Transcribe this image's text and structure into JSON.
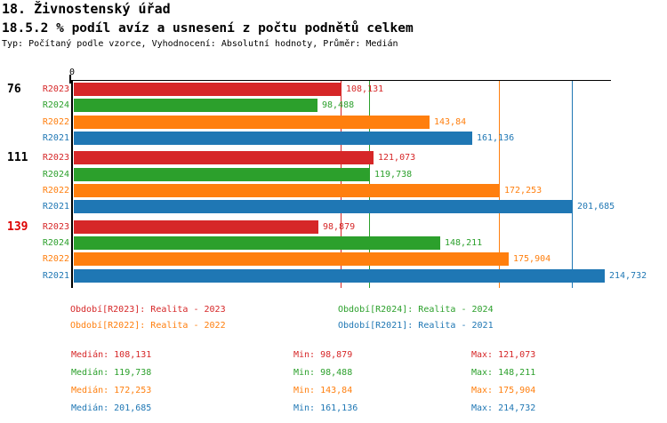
{
  "header": {
    "title": "18. Živnostenský úřad",
    "subtitle": "18.5.2 % podíl avíz a usnesení z počtu podnětů celkem",
    "meta": "Typ: Počítaný podle vzorce, Vyhodnocení: Absolutní hodnoty, Průměr: Medián"
  },
  "colors": {
    "r2023": "#d62728",
    "r2024": "#2ca02c",
    "r2022": "#ff7f0e",
    "r2021": "#1f77b4",
    "axis": "#000000",
    "group_label_normal": "#000000",
    "group_label_alert": "#dd0000"
  },
  "chart_data": {
    "type": "bar",
    "orientation": "horizontal",
    "x_axis": {
      "origin_label": "0",
      "xlim": [
        0,
        217.8
      ],
      "gridlines_are_medians": true
    },
    "series_order": [
      "R2023",
      "R2024",
      "R2022",
      "R2021"
    ],
    "groups": [
      {
        "label": "76",
        "label_color": "#000000",
        "bars": [
          {
            "series": "R2023",
            "value": 108.131,
            "label": "108,131",
            "color": "#d62728"
          },
          {
            "series": "R2024",
            "value": 98.488,
            "label": "98,488",
            "color": "#2ca02c"
          },
          {
            "series": "R2022",
            "value": 143.84,
            "label": "143,84",
            "color": "#ff7f0e"
          },
          {
            "series": "R2021",
            "value": 161.136,
            "label": "161,136",
            "color": "#1f77b4"
          }
        ]
      },
      {
        "label": "111",
        "label_color": "#000000",
        "bars": [
          {
            "series": "R2023",
            "value": 121.073,
            "label": "121,073",
            "color": "#d62728"
          },
          {
            "series": "R2024",
            "value": 119.738,
            "label": "119,738",
            "color": "#2ca02c"
          },
          {
            "series": "R2022",
            "value": 172.253,
            "label": "172,253",
            "color": "#ff7f0e"
          },
          {
            "series": "R2021",
            "value": 201.685,
            "label": "201,685",
            "color": "#1f77b4"
          }
        ]
      },
      {
        "label": "139",
        "label_color": "#dd0000",
        "bars": [
          {
            "series": "R2023",
            "value": 98.879,
            "label": "98,879",
            "color": "#d62728"
          },
          {
            "series": "R2024",
            "value": 148.211,
            "label": "148,211",
            "color": "#2ca02c"
          },
          {
            "series": "R2022",
            "value": 175.904,
            "label": "175,904",
            "color": "#ff7f0e"
          },
          {
            "series": "R2021",
            "value": 214.732,
            "label": "214,732",
            "color": "#1f77b4"
          }
        ]
      }
    ],
    "median_gridlines": [
      {
        "series": "R2023",
        "value": 108.131,
        "color": "#d62728"
      },
      {
        "series": "R2024",
        "value": 119.738,
        "color": "#2ca02c"
      },
      {
        "series": "R2022",
        "value": 172.253,
        "color": "#ff7f0e"
      },
      {
        "series": "R2021",
        "value": 201.685,
        "color": "#1f77b4"
      }
    ],
    "legend": [
      {
        "series": "R2023",
        "label": "Období[R2023]: Realita - 2023",
        "color": "#d62728",
        "col": 0,
        "row": 0
      },
      {
        "series": "R2024",
        "label": "Období[R2024]: Realita - 2024",
        "color": "#2ca02c",
        "col": 1,
        "row": 0
      },
      {
        "series": "R2022",
        "label": "Období[R2022]: Realita - 2022",
        "color": "#ff7f0e",
        "col": 0,
        "row": 1
      },
      {
        "series": "R2021",
        "label": "Období[R2021]: Realita - 2021",
        "color": "#1f77b4",
        "col": 1,
        "row": 1
      }
    ],
    "stats_labels": {
      "median": "Medián:",
      "min": "Min:",
      "max": "Max:"
    },
    "stats": [
      {
        "series": "R2023",
        "median": "108,131",
        "min": "98,879",
        "max": "121,073",
        "color": "#d62728"
      },
      {
        "series": "R2024",
        "median": "119,738",
        "min": "98,488",
        "max": "148,211",
        "color": "#2ca02c"
      },
      {
        "series": "R2022",
        "median": "172,253",
        "min": "143,84",
        "max": "175,904",
        "color": "#ff7f0e"
      },
      {
        "series": "R2021",
        "median": "201,685",
        "min": "161,136",
        "max": "214,732",
        "color": "#1f77b4"
      }
    ]
  }
}
